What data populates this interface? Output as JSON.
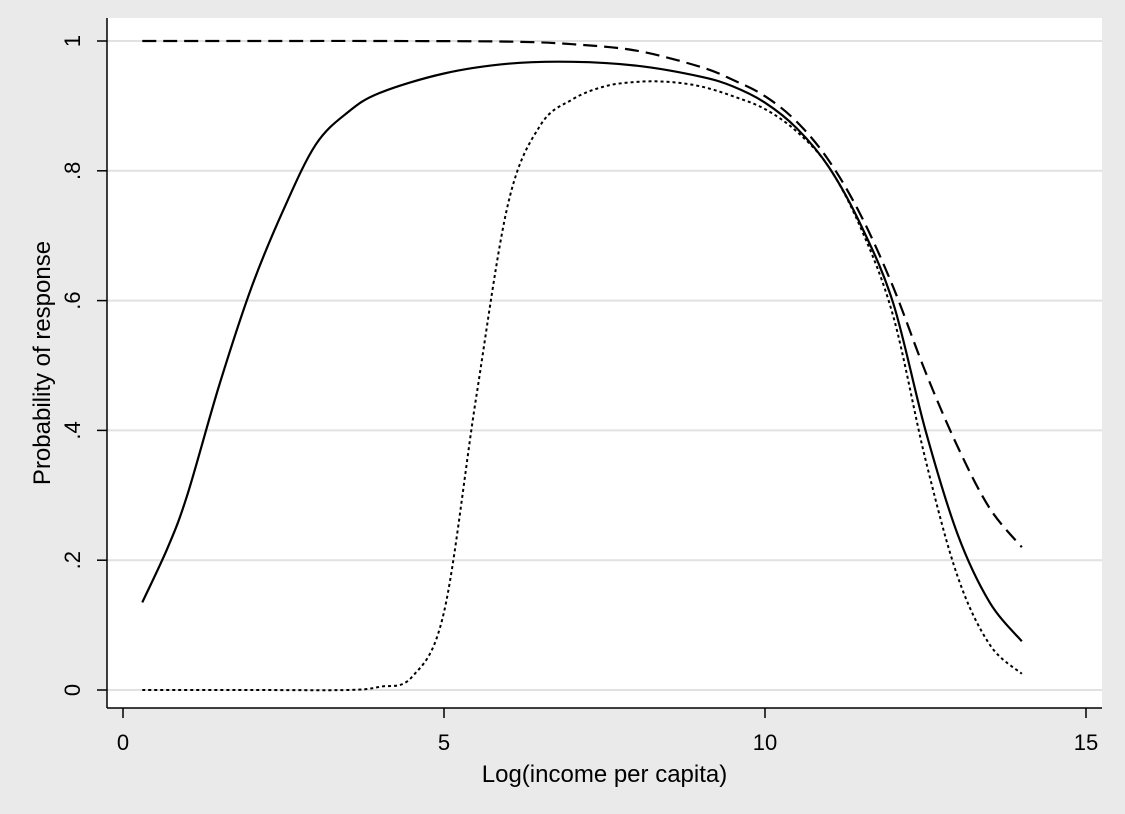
{
  "chart_data": {
    "type": "line",
    "title": "",
    "xlabel": "Log(income per capita)",
    "ylabel": "Probability of response",
    "xlim": [
      0,
      15
    ],
    "ylim": [
      0,
      1
    ],
    "x_ticks": [
      0,
      5,
      10,
      15
    ],
    "x_tick_labels": [
      "0",
      "5",
      "10",
      "15"
    ],
    "y_ticks": [
      0,
      0.2,
      0.4,
      0.6,
      0.8,
      1
    ],
    "y_tick_labels": [
      "0",
      ".2",
      ".4",
      ".6",
      ".8",
      "1"
    ],
    "grid": "horizontal",
    "legend": "none",
    "background_color": "#eaeaea",
    "plot_background_color": "#ffffff",
    "gridline_color": "#e1e1e1",
    "line_color": "#000000",
    "series": [
      {
        "style": "solid",
        "x": [
          0.3,
          0.7,
          1.0,
          1.5,
          2.0,
          2.5,
          3.0,
          3.5,
          4.0,
          5.0,
          6.0,
          7.0,
          8.0,
          9.0,
          9.5,
          10.0,
          10.5,
          11.0,
          11.5,
          12.0,
          12.5,
          13.0,
          13.5,
          14.0
        ],
        "y": [
          0.135,
          0.22,
          0.3,
          0.47,
          0.62,
          0.74,
          0.84,
          0.89,
          0.92,
          0.95,
          0.965,
          0.968,
          0.962,
          0.945,
          0.93,
          0.905,
          0.865,
          0.805,
          0.715,
          0.595,
          0.4,
          0.24,
          0.135,
          0.075
        ]
      },
      {
        "style": "dashed",
        "x": [
          0.3,
          2.0,
          4.0,
          6.0,
          7.0,
          8.0,
          9.0,
          9.5,
          10.0,
          10.5,
          11.0,
          11.5,
          12.0,
          12.5,
          13.0,
          13.5,
          14.0
        ],
        "y": [
          1.0,
          1.0,
          1.0,
          0.999,
          0.995,
          0.985,
          0.96,
          0.94,
          0.915,
          0.875,
          0.815,
          0.73,
          0.62,
          0.49,
          0.375,
          0.28,
          0.22
        ]
      },
      {
        "style": "dotted",
        "x": [
          0.3,
          2.0,
          3.5,
          4.0,
          4.5,
          5.0,
          5.5,
          6.0,
          6.5,
          7.0,
          7.5,
          8.0,
          8.5,
          9.0,
          9.5,
          10.0,
          10.5,
          11.0,
          11.5,
          12.0,
          12.5,
          13.0,
          13.5,
          14.0
        ],
        "y": [
          0.0,
          0.0,
          0.0,
          0.005,
          0.02,
          0.12,
          0.45,
          0.75,
          0.87,
          0.91,
          0.93,
          0.937,
          0.937,
          0.93,
          0.915,
          0.895,
          0.86,
          0.805,
          0.71,
          0.575,
          0.355,
          0.175,
          0.07,
          0.025
        ]
      }
    ]
  }
}
